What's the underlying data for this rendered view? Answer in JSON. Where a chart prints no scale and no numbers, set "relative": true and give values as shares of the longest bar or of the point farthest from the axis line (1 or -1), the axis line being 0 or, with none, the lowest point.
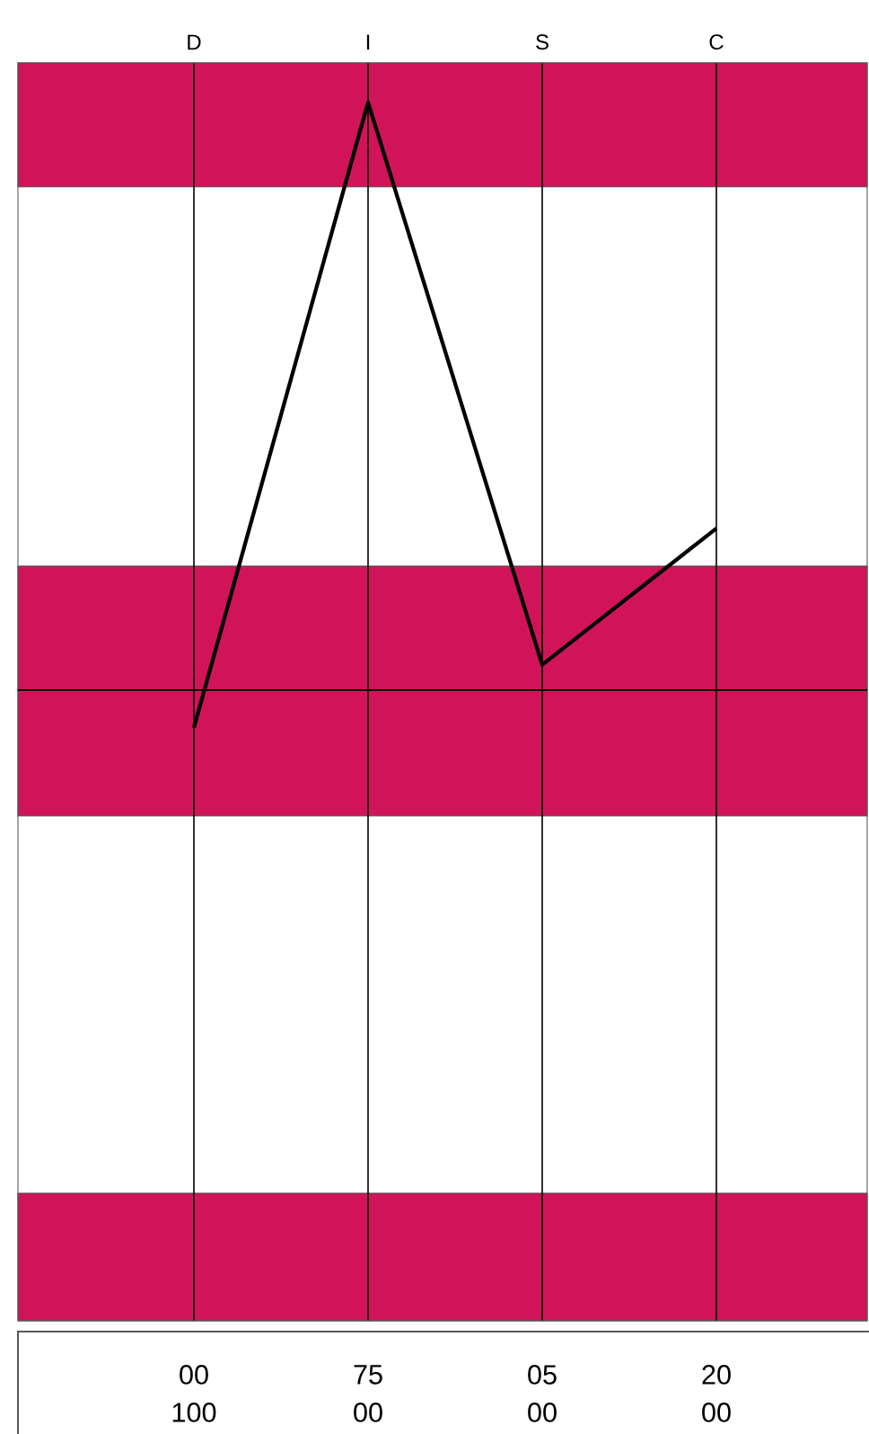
{
  "chart_data": {
    "type": "line",
    "relative": true,
    "categories": [
      "D",
      "I",
      "S",
      "C"
    ],
    "series": [
      {
        "color": "#000000",
        "values": [
          -0.064,
          1,
          0.043,
          0.275
        ]
      }
    ],
    "bands": [
      {
        "axis": "y",
        "from": 0.856,
        "to": 1.067,
        "color": "#d1145a"
      },
      {
        "axis": "y",
        "from": -0.214,
        "to": 0.211,
        "color": "#d1145a"
      },
      {
        "axis": "y",
        "from": -1.073,
        "to": -0.856,
        "color": "#d1145a"
      }
    ],
    "grid": "x",
    "annotations": [
      "00",
      "75",
      "05",
      "20",
      "100",
      "00",
      "00",
      "00"
    ]
  }
}
